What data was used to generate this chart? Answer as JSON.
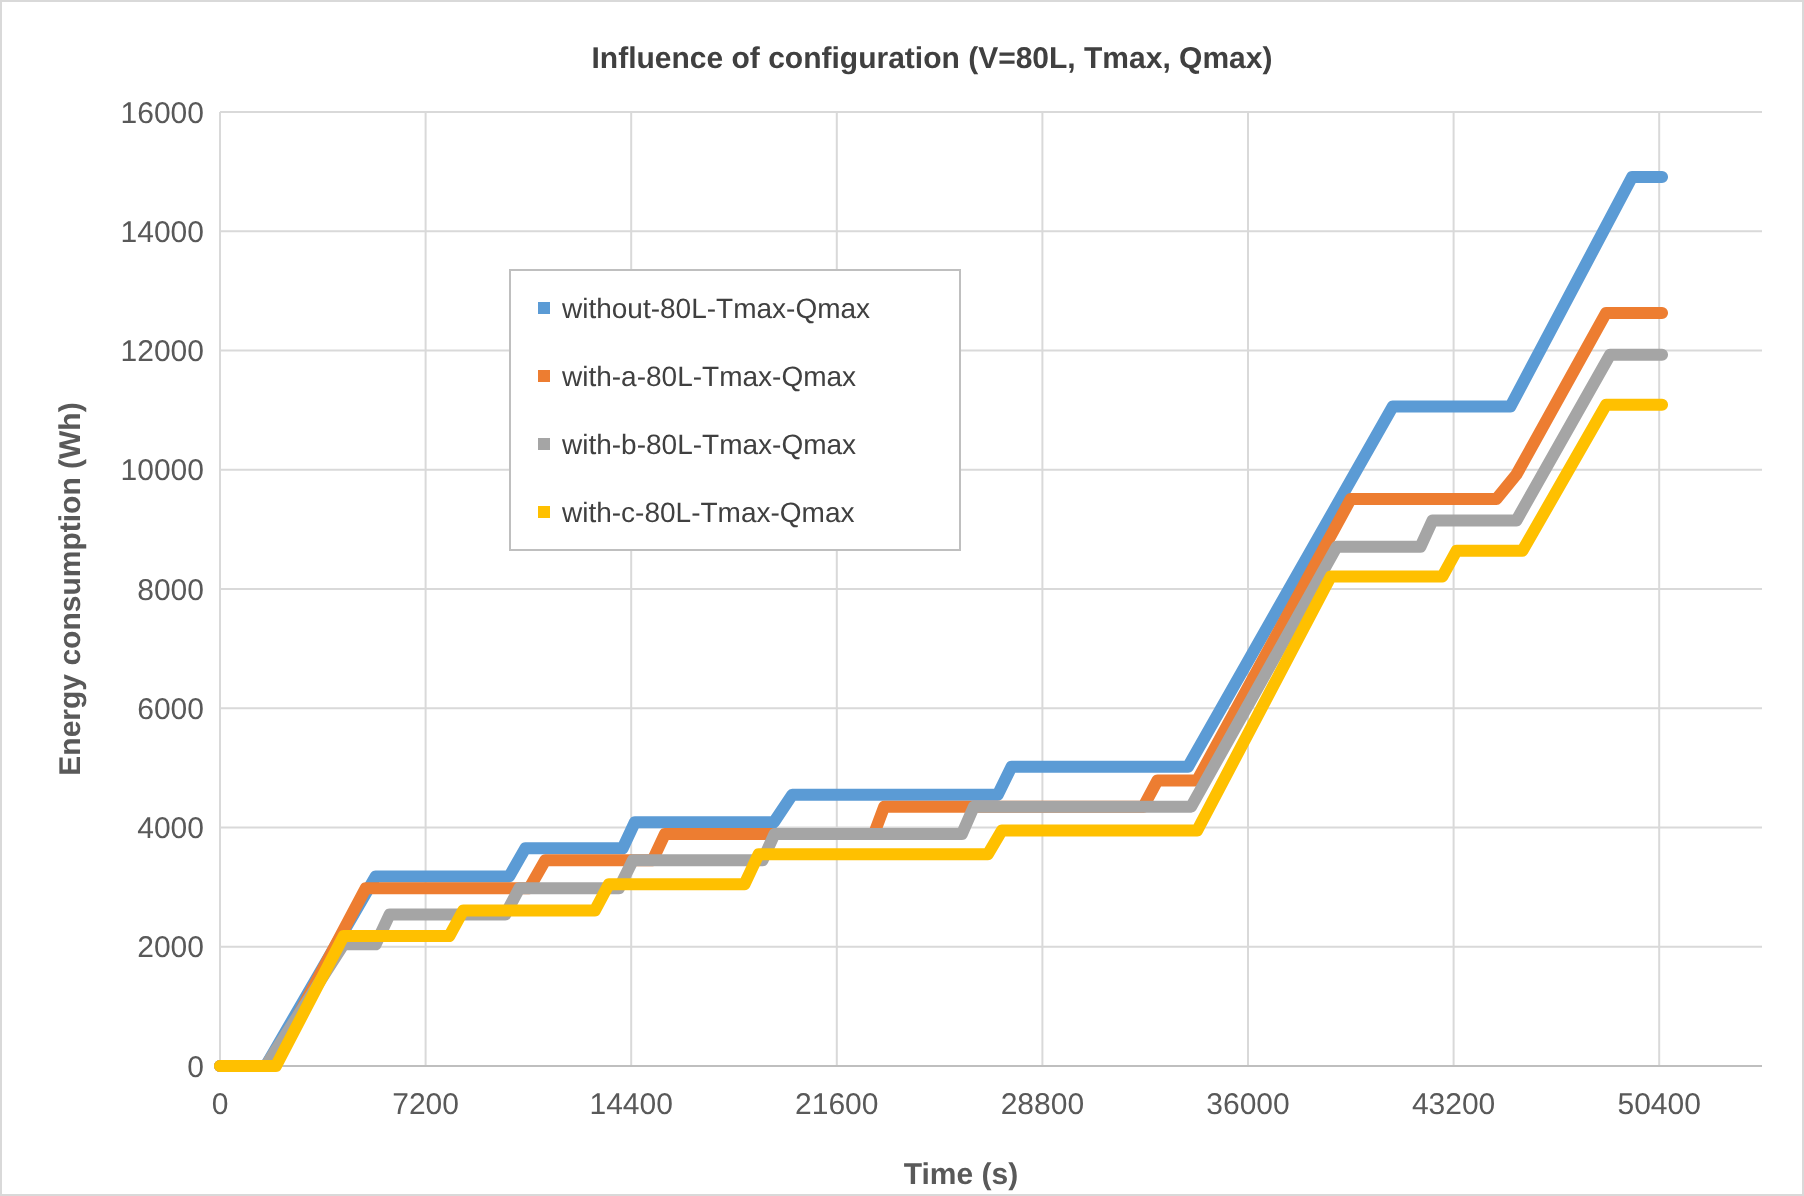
{
  "chart_data": {
    "type": "line",
    "title": "Influence of configuration (V=80L,  Tmax, Qmax)",
    "xlabel": "Time (s)",
    "ylabel": "Energy consumption (Wh)",
    "xlim": [
      0,
      54000
    ],
    "xticks": [
      0,
      7200,
      14400,
      21600,
      28800,
      36000,
      43200,
      50400
    ],
    "ylim": [
      0,
      16000
    ],
    "yticks": [
      0,
      2000,
      4000,
      6000,
      8000,
      10000,
      12000,
      14000,
      16000
    ],
    "grid": true,
    "legend": "top left",
    "marker": "none",
    "line_style": "solid",
    "series": [
      {
        "name": "without-80L-Tmax-Qmax",
        "color": "#5b9bd5",
        "x": [
          0,
          1600,
          5450,
          10130,
          10690,
          14100,
          14530,
          19400,
          20040,
          27240,
          27720,
          33900,
          41070,
          45190,
          49450,
          50500
        ],
        "values": [
          0,
          0,
          3180,
          3180,
          3650,
          3650,
          4090,
          4090,
          4550,
          4550,
          5020,
          5020,
          11060,
          11060,
          14910,
          14910
        ]
      },
      {
        "name": "with-a-80L-Tmax-Qmax",
        "color": "#ed7d31",
        "x": [
          0,
          1800,
          5100,
          10830,
          11390,
          15150,
          15580,
          22900,
          23260,
          32340,
          32830,
          34220,
          39600,
          44700,
          45400,
          48540,
          50500
        ],
        "values": [
          0,
          0,
          2980,
          2980,
          3450,
          3450,
          3890,
          3890,
          4350,
          4350,
          4790,
          4790,
          9510,
          9510,
          9920,
          12630,
          12630
        ]
      },
      {
        "name": "with-b-80L-Tmax-Qmax",
        "color": "#a5a5a5",
        "x": [
          0,
          1600,
          4330,
          5450,
          5940,
          9990,
          10480,
          13970,
          14460,
          19000,
          19420,
          25980,
          26400,
          34010,
          39110,
          42040,
          42460,
          45400,
          48680,
          50500
        ],
        "values": [
          0,
          0,
          2040,
          2040,
          2540,
          2540,
          2980,
          2980,
          3450,
          3450,
          3890,
          3890,
          4350,
          4350,
          8710,
          8710,
          9150,
          9150,
          11930,
          11930
        ]
      },
      {
        "name": "with-c-80L-Tmax-Qmax",
        "color": "#ffc000",
        "x": [
          0,
          1960,
          4330,
          8030,
          8520,
          13130,
          13620,
          18370,
          18860,
          26890,
          27380,
          34220,
          38900,
          42810,
          43300,
          45610,
          48540,
          50500
        ],
        "values": [
          0,
          0,
          2180,
          2180,
          2610,
          2610,
          3050,
          3050,
          3550,
          3550,
          3950,
          3950,
          8210,
          8210,
          8640,
          8640,
          11090,
          11090
        ]
      }
    ]
  }
}
